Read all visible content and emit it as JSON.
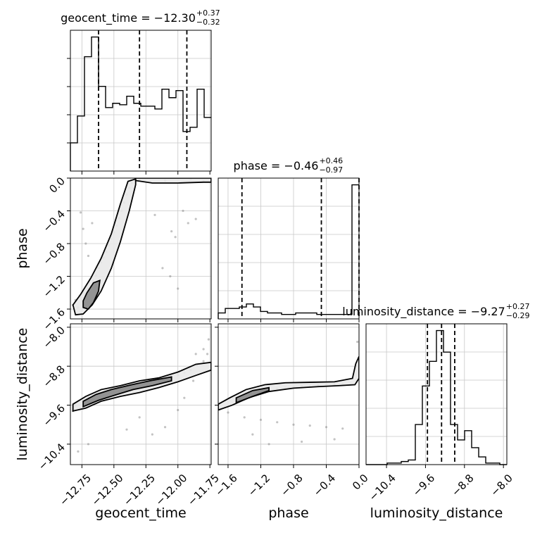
{
  "chart_data": {
    "type": "corner",
    "parameters": [
      "geocent_time",
      "phase",
      "luminosity_distance"
    ],
    "axis_labels": {
      "geocent_time": "geocent_time",
      "phase": "phase",
      "luminosity_distance": "luminosity_distance"
    },
    "ranges": {
      "geocent_time": [
        -12.84,
        -11.74
      ],
      "phase": [
        -1.72,
        0.0
      ],
      "luminosity_distance": [
        -10.82,
        -7.93
      ]
    },
    "ticks": {
      "geocent_time": [
        "−12.75",
        "−12.50",
        "−12.25",
        "−12.00",
        "−11.75"
      ],
      "phase": [
        "−1.6",
        "−1.2",
        "−0.8",
        "−0.4",
        "0.0"
      ],
      "luminosity_distance": [
        "−10.4",
        "−9.6",
        "−8.8",
        "−8.0"
      ]
    },
    "tick_values": {
      "geocent_time": [
        -12.75,
        -12.5,
        -12.25,
        -12.0,
        -11.75
      ],
      "phase": [
        -1.6,
        -1.2,
        -0.8,
        -0.4,
        0.0
      ],
      "luminosity_distance": [
        -10.4,
        -9.6,
        -8.8,
        -8.0
      ]
    },
    "titles": {
      "geocent_time": {
        "lead": "geocent_time = −12.30",
        "plus": "+0.37",
        "minus": "−0.32"
      },
      "phase": {
        "lead": "phase = −0.46",
        "plus": "+0.46",
        "minus": "−0.97"
      },
      "luminosity_distance": {
        "lead": "luminosity_distance = −9.27",
        "plus": "+0.27",
        "minus": "−0.29"
      }
    },
    "quantiles": {
      "geocent_time": [
        -12.62,
        -12.3,
        -11.93
      ],
      "phase": [
        -1.43,
        -0.46,
        0.0
      ],
      "luminosity_distance": [
        -9.56,
        -9.27,
        -9.0
      ]
    },
    "histograms": {
      "geocent_time": {
        "bin_edges": [
          -12.84,
          -12.785,
          -12.73,
          -12.675,
          -12.62,
          -12.565,
          -12.51,
          -12.455,
          -12.4,
          -12.345,
          -12.29,
          -12.235,
          -12.18,
          -12.125,
          -12.07,
          -12.015,
          -11.96,
          -11.905,
          -11.85,
          -11.795,
          -11.74
        ],
        "counts": [
          0.2,
          0.39,
          0.81,
          0.95,
          0.6,
          0.45,
          0.48,
          0.47,
          0.53,
          0.48,
          0.46,
          0.46,
          0.44,
          0.58,
          0.52,
          0.57,
          0.28,
          0.31,
          0.58,
          0.38
        ]
      },
      "phase": {
        "bin_edges": [
          -1.72,
          -1.634,
          -1.548,
          -1.462,
          -1.376,
          -1.29,
          -1.204,
          -1.118,
          -1.032,
          -0.946,
          -0.86,
          -0.774,
          -0.688,
          -0.602,
          -0.516,
          -0.43,
          -0.344,
          -0.258,
          -0.172,
          -0.086,
          0.0
        ],
        "counts": [
          0.04,
          0.07,
          0.07,
          0.08,
          0.1,
          0.08,
          0.05,
          0.04,
          0.04,
          0.03,
          0.03,
          0.04,
          0.04,
          0.04,
          0.03,
          0.03,
          0.03,
          0.03,
          0.03,
          0.9
        ]
      },
      "luminosity_distance": {
        "bin_edges": [
          -10.82,
          -10.6755,
          -10.531,
          -10.3865,
          -10.242,
          -10.0975,
          -9.953,
          -9.8085,
          -9.664,
          -9.5195,
          -9.375,
          -9.2305,
          -9.086,
          -8.9415,
          -8.797,
          -8.6525,
          -8.508,
          -8.3635,
          -8.219,
          -8.0745,
          -7.93
        ],
        "counts": [
          0.0,
          0.0,
          0.0,
          0.01,
          0.01,
          0.02,
          0.03,
          0.26,
          0.51,
          0.67,
          0.87,
          0.73,
          0.26,
          0.16,
          0.22,
          0.11,
          0.05,
          0.01,
          0.01,
          0.0
        ]
      }
    },
    "density_samples": {
      "phase_vs_geocent_time": [
        {
          "x": -12.82,
          "y": -1.55
        },
        {
          "x": -12.8,
          "y": -1.49
        },
        {
          "x": -12.78,
          "y": -1.58
        },
        {
          "x": -12.76,
          "y": -1.46
        },
        {
          "x": -12.74,
          "y": -1.4
        },
        {
          "x": -12.72,
          "y": -1.42
        },
        {
          "x": -12.7,
          "y": -1.35
        },
        {
          "x": -12.68,
          "y": -1.32
        },
        {
          "x": -12.66,
          "y": -1.26
        },
        {
          "x": -12.64,
          "y": -1.19
        },
        {
          "x": -12.62,
          "y": -1.1
        },
        {
          "x": -12.6,
          "y": -1.03
        },
        {
          "x": -12.58,
          "y": -0.97
        },
        {
          "x": -12.56,
          "y": -0.9
        },
        {
          "x": -12.54,
          "y": -0.82
        },
        {
          "x": -12.52,
          "y": -0.74
        },
        {
          "x": -12.5,
          "y": -0.66
        },
        {
          "x": -12.48,
          "y": -0.58
        },
        {
          "x": -12.46,
          "y": -0.49
        },
        {
          "x": -12.44,
          "y": -0.4
        },
        {
          "x": -12.42,
          "y": -0.3
        },
        {
          "x": -12.4,
          "y": -0.2
        },
        {
          "x": -12.38,
          "y": -0.12
        },
        {
          "x": -12.36,
          "y": -0.06
        },
        {
          "x": -12.76,
          "y": -0.42
        },
        {
          "x": -12.74,
          "y": -0.62
        },
        {
          "x": -12.72,
          "y": -0.8
        },
        {
          "x": -12.7,
          "y": -0.95
        },
        {
          "x": -12.67,
          "y": -0.55
        },
        {
          "x": -12.05,
          "y": -0.65
        },
        {
          "x": -12.02,
          "y": -0.72
        },
        {
          "x": -11.96,
          "y": -0.4
        },
        {
          "x": -11.92,
          "y": -0.55
        },
        {
          "x": -11.86,
          "y": -0.5
        },
        {
          "x": -12.12,
          "y": -1.1
        },
        {
          "x": -12.18,
          "y": -0.45
        },
        {
          "x": -12.3,
          "y": -0.02
        },
        {
          "x": -12.1,
          "y": -0.03
        },
        {
          "x": -11.9,
          "y": -0.01
        },
        {
          "x": -11.8,
          "y": -0.04
        },
        {
          "x": -12.06,
          "y": -1.2
        },
        {
          "x": -12.0,
          "y": -1.35
        }
      ],
      "luminosity_distance_vs_geocent_time": [
        {
          "x": -12.82,
          "y": -9.72
        },
        {
          "x": -12.8,
          "y": -9.6
        },
        {
          "x": -12.76,
          "y": -9.66
        },
        {
          "x": -12.72,
          "y": -9.55
        },
        {
          "x": -12.68,
          "y": -9.52
        },
        {
          "x": -12.64,
          "y": -9.45
        },
        {
          "x": -12.6,
          "y": -9.4
        },
        {
          "x": -12.55,
          "y": -9.37
        },
        {
          "x": -12.5,
          "y": -9.33
        },
        {
          "x": -12.45,
          "y": -9.29
        },
        {
          "x": -12.4,
          "y": -9.26
        },
        {
          "x": -12.35,
          "y": -9.24
        },
        {
          "x": -12.3,
          "y": -9.22
        },
        {
          "x": -12.25,
          "y": -9.18
        },
        {
          "x": -12.2,
          "y": -9.14
        },
        {
          "x": -12.15,
          "y": -9.1
        },
        {
          "x": -12.1,
          "y": -9.06
        },
        {
          "x": -12.05,
          "y": -9.02
        },
        {
          "x": -12.0,
          "y": -8.98
        },
        {
          "x": -11.95,
          "y": -8.93
        },
        {
          "x": -11.9,
          "y": -8.88
        },
        {
          "x": -11.85,
          "y": -8.78
        },
        {
          "x": -11.8,
          "y": -8.7
        },
        {
          "x": -11.77,
          "y": -8.55
        },
        {
          "x": -11.76,
          "y": -8.25
        },
        {
          "x": -11.8,
          "y": -8.45
        },
        {
          "x": -11.86,
          "y": -8.55
        },
        {
          "x": -12.3,
          "y": -9.85
        },
        {
          "x": -12.2,
          "y": -10.2
        },
        {
          "x": -12.1,
          "y": -10.05
        },
        {
          "x": -12.4,
          "y": -10.1
        },
        {
          "x": -12.0,
          "y": -9.7
        },
        {
          "x": -11.95,
          "y": -9.45
        },
        {
          "x": -12.7,
          "y": -10.4
        },
        {
          "x": -12.78,
          "y": -10.55
        },
        {
          "x": -11.88,
          "y": -9.1
        }
      ],
      "luminosity_distance_vs_phase": [
        {
          "x": -1.7,
          "y": -9.68
        },
        {
          "x": -1.6,
          "y": -9.62
        },
        {
          "x": -1.5,
          "y": -9.55
        },
        {
          "x": -1.4,
          "y": -9.48
        },
        {
          "x": -1.3,
          "y": -9.4
        },
        {
          "x": -1.2,
          "y": -9.33
        },
        {
          "x": -1.1,
          "y": -9.28
        },
        {
          "x": -1.0,
          "y": -9.26
        },
        {
          "x": -0.9,
          "y": -9.24
        },
        {
          "x": -0.8,
          "y": -9.22
        },
        {
          "x": -0.7,
          "y": -9.21
        },
        {
          "x": -0.6,
          "y": -9.2
        },
        {
          "x": -0.5,
          "y": -9.19
        },
        {
          "x": -0.4,
          "y": -9.18
        },
        {
          "x": -0.3,
          "y": -9.17
        },
        {
          "x": -0.2,
          "y": -9.17
        },
        {
          "x": -0.1,
          "y": -9.16
        },
        {
          "x": -0.03,
          "y": -9.1
        },
        {
          "x": -0.02,
          "y": -8.7
        },
        {
          "x": -0.02,
          "y": -8.3
        },
        {
          "x": -1.6,
          "y": -9.75
        },
        {
          "x": -1.4,
          "y": -9.85
        },
        {
          "x": -1.2,
          "y": -9.9
        },
        {
          "x": -1.0,
          "y": -9.95
        },
        {
          "x": -0.8,
          "y": -10.0
        },
        {
          "x": -0.6,
          "y": -10.02
        },
        {
          "x": -0.4,
          "y": -10.05
        },
        {
          "x": -0.2,
          "y": -10.08
        },
        {
          "x": -1.1,
          "y": -10.4
        },
        {
          "x": -0.7,
          "y": -10.35
        },
        {
          "x": -0.3,
          "y": -10.3
        },
        {
          "x": -1.3,
          "y": -10.2
        }
      ]
    },
    "contours": {
      "phase_vs_geocent_time": [
        {
          "level": "outer",
          "points": [
            [
              -12.8,
              -1.67
            ],
            [
              -12.74,
              -1.66
            ],
            [
              -12.67,
              -1.55
            ],
            [
              -12.6,
              -1.38
            ],
            [
              -12.52,
              -1.1
            ],
            [
              -12.45,
              -0.78
            ],
            [
              -12.38,
              -0.4
            ],
            [
              -12.33,
              -0.08
            ],
            [
              -12.33,
              -0.01
            ],
            [
              -12.39,
              -0.04
            ],
            [
              -12.45,
              -0.32
            ],
            [
              -12.52,
              -0.68
            ],
            [
              -12.6,
              -0.98
            ],
            [
              -12.68,
              -1.22
            ],
            [
              -12.76,
              -1.42
            ],
            [
              -12.82,
              -1.55
            ]
          ]
        },
        {
          "level": "inner",
          "points": [
            [
              -12.74,
              -1.58
            ],
            [
              -12.7,
              -1.6
            ],
            [
              -12.66,
              -1.52
            ],
            [
              -12.62,
              -1.38
            ],
            [
              -12.61,
              -1.25
            ],
            [
              -12.66,
              -1.28
            ],
            [
              -12.71,
              -1.4
            ],
            [
              -12.74,
              -1.5
            ]
          ]
        }
      ],
      "phase_top_band": [
        {
          "level": "outer",
          "points": [
            [
              -12.33,
              -0.03
            ],
            [
              -12.2,
              -0.06
            ],
            [
              -12.0,
              -0.06
            ],
            [
              -11.8,
              -0.05
            ],
            [
              -11.74,
              -0.05
            ],
            [
              -11.74,
              0.0
            ],
            [
              -12.33,
              0.0
            ]
          ]
        }
      ],
      "luminosity_distance_vs_geocent_time": [
        {
          "level": "outer",
          "points": [
            [
              -12.82,
              -9.72
            ],
            [
              -12.72,
              -9.66
            ],
            [
              -12.6,
              -9.52
            ],
            [
              -12.45,
              -9.42
            ],
            [
              -12.3,
              -9.34
            ],
            [
              -12.15,
              -9.24
            ],
            [
              -12.0,
              -9.12
            ],
            [
              -11.85,
              -8.98
            ],
            [
              -11.74,
              -8.88
            ],
            [
              -11.74,
              -8.72
            ],
            [
              -11.86,
              -8.76
            ],
            [
              -12.0,
              -8.92
            ],
            [
              -12.15,
              -9.04
            ],
            [
              -12.3,
              -9.1
            ],
            [
              -12.45,
              -9.2
            ],
            [
              -12.6,
              -9.28
            ],
            [
              -12.72,
              -9.42
            ],
            [
              -12.82,
              -9.58
            ]
          ]
        },
        {
          "level": "inner",
          "points": [
            [
              -12.74,
              -9.63
            ],
            [
              -12.62,
              -9.5
            ],
            [
              -12.5,
              -9.4
            ],
            [
              -12.35,
              -9.28
            ],
            [
              -12.2,
              -9.2
            ],
            [
              -12.05,
              -9.1
            ],
            [
              -12.05,
              -9.02
            ],
            [
              -12.22,
              -9.1
            ],
            [
              -12.36,
              -9.18
            ],
            [
              -12.52,
              -9.28
            ],
            [
              -12.64,
              -9.38
            ],
            [
              -12.74,
              -9.52
            ]
          ]
        }
      ],
      "luminosity_distance_vs_phase": [
        {
          "level": "outer",
          "points": [
            [
              -1.72,
              -9.7
            ],
            [
              -1.55,
              -9.6
            ],
            [
              -1.35,
              -9.45
            ],
            [
              -1.1,
              -9.32
            ],
            [
              -0.8,
              -9.25
            ],
            [
              -0.5,
              -9.22
            ],
            [
              -0.25,
              -9.2
            ],
            [
              -0.05,
              -9.18
            ],
            [
              0.0,
              -9.05
            ],
            [
              0.0,
              -8.6
            ],
            [
              -0.04,
              -8.75
            ],
            [
              -0.08,
              -9.05
            ],
            [
              -0.3,
              -9.12
            ],
            [
              -0.6,
              -9.13
            ],
            [
              -0.9,
              -9.14
            ],
            [
              -1.15,
              -9.18
            ],
            [
              -1.38,
              -9.28
            ],
            [
              -1.58,
              -9.45
            ],
            [
              -1.72,
              -9.58
            ]
          ]
        },
        {
          "level": "inner",
          "points": [
            [
              -1.5,
              -9.55
            ],
            [
              -1.3,
              -9.42
            ],
            [
              -1.1,
              -9.3
            ],
            [
              -1.1,
              -9.24
            ],
            [
              -1.3,
              -9.3
            ],
            [
              -1.5,
              -9.45
            ]
          ]
        }
      ]
    }
  }
}
